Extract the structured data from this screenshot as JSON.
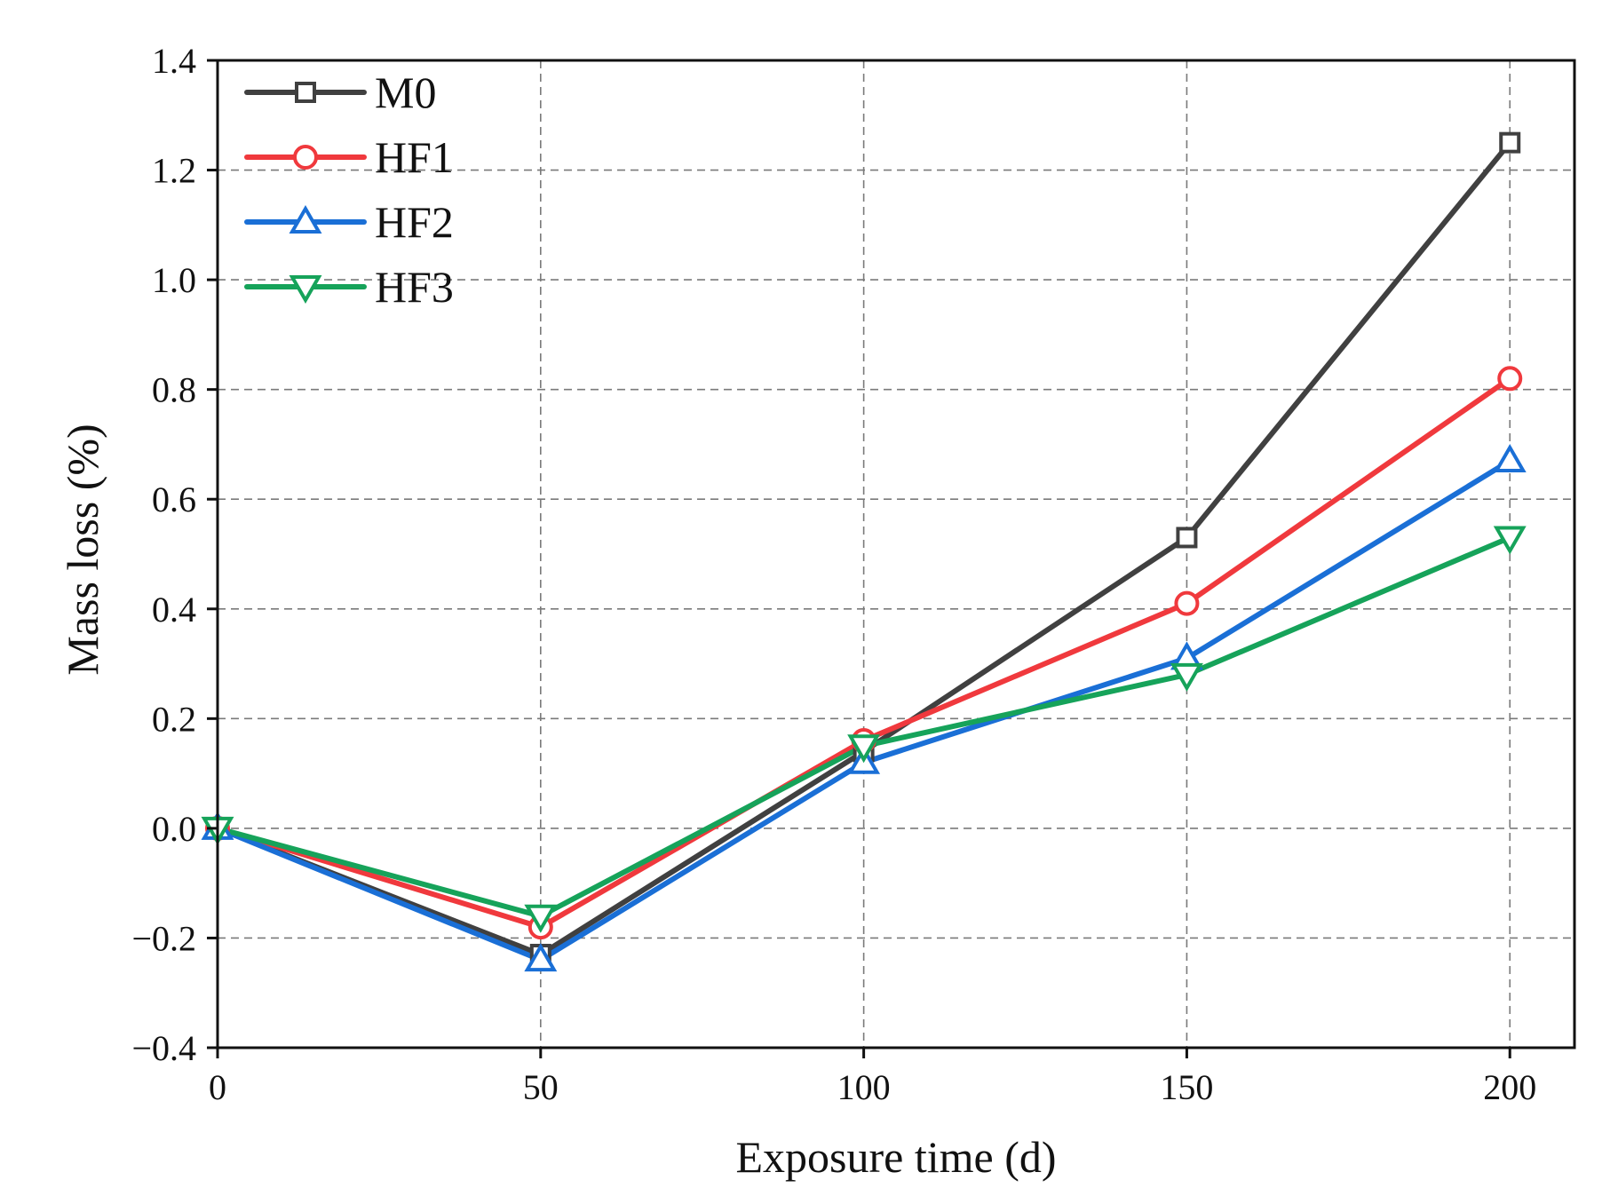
{
  "chart_data": {
    "type": "line",
    "title": "",
    "xlabel": "Exposure time (d)",
    "ylabel": "Mass loss (%)",
    "x": [
      0,
      50,
      100,
      150,
      200
    ],
    "xlim": [
      0,
      210
    ],
    "ylim": [
      -0.4,
      1.4
    ],
    "xticks": [
      0,
      50,
      100,
      150,
      200
    ],
    "xtick_labels": [
      "0",
      "50",
      "100",
      "150",
      "200"
    ],
    "yticks": [
      -0.4,
      -0.2,
      0.0,
      0.2,
      0.4,
      0.6,
      0.8,
      1.0,
      1.2,
      1.4
    ],
    "ytick_labels": [
      "−0.4",
      "−0.2",
      "0.0",
      "0.2",
      "0.4",
      "0.6",
      "0.8",
      "1.0",
      "1.2",
      "1.4"
    ],
    "grid": true,
    "legend_position": "top-left",
    "series": [
      {
        "name": "M0",
        "marker": "square",
        "color": "#404040",
        "values": [
          0.0,
          -0.23,
          0.14,
          0.53,
          1.25
        ]
      },
      {
        "name": "HF1",
        "marker": "circle",
        "color": "#f0393d",
        "values": [
          0.0,
          -0.18,
          0.16,
          0.41,
          0.82
        ]
      },
      {
        "name": "HF2",
        "marker": "triangle-up",
        "color": "#1a6fd6",
        "values": [
          0.0,
          -0.24,
          0.12,
          0.31,
          0.67
        ]
      },
      {
        "name": "HF3",
        "marker": "triangle-down",
        "color": "#16a35a",
        "values": [
          0.0,
          -0.16,
          0.15,
          0.28,
          0.53
        ]
      }
    ]
  }
}
